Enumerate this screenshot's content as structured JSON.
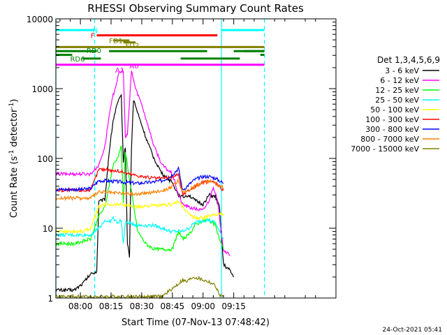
{
  "chart_data": {
    "type": "line",
    "title": "RHESSI Observing Summary Count Rates",
    "xlabel": "Start Time (07-Nov-13 07:48:42)",
    "ylabel_main": "Count Rate (s",
    "ylabel_sup1": "-1",
    "ylabel_mid": " detector",
    "ylabel_sup2": "-1",
    "ylabel_end": ")",
    "yscale": "log",
    "ylim": [
      1,
      10000
    ],
    "xlim_minutes": [
      -12,
      125
    ],
    "x_ticks": [
      {
        "m": 0,
        "label": "08:00"
      },
      {
        "m": 15,
        "label": "08:15"
      },
      {
        "m": 30,
        "label": "08:30"
      },
      {
        "m": 45,
        "label": "08:45"
      },
      {
        "m": 60,
        "label": "09:00"
      },
      {
        "m": 75,
        "label": "09:15"
      }
    ],
    "y_ticks": [
      {
        "v": 1,
        "label": "1"
      },
      {
        "v": 10,
        "label": "10"
      },
      {
        "v": 100,
        "label": "100"
      },
      {
        "v": 1000,
        "label": "1000"
      },
      {
        "v": 10000,
        "label": "10000"
      }
    ],
    "legend_title": "Det 1,3,4,5,6,9",
    "legend_position": "right",
    "series": [
      {
        "name": "3 - 6 keV",
        "color": "#000000",
        "points": [
          [
            -12,
            1.3
          ],
          [
            -3,
            1.3
          ],
          [
            1,
            1.6
          ],
          [
            5,
            2.2
          ],
          [
            8,
            2.4
          ],
          [
            9,
            24
          ],
          [
            12,
            26
          ],
          [
            14,
            120
          ],
          [
            16,
            350
          ],
          [
            18,
            600
          ],
          [
            20,
            800
          ],
          [
            21,
            90
          ],
          [
            22,
            150
          ],
          [
            23,
            6
          ],
          [
            24,
            4
          ],
          [
            25,
            150
          ],
          [
            26,
            700
          ],
          [
            28,
            450
          ],
          [
            30,
            300
          ],
          [
            32,
            200
          ],
          [
            34,
            140
          ],
          [
            36,
            100
          ],
          [
            40,
            60
          ],
          [
            45,
            45
          ],
          [
            48,
            30
          ],
          [
            50,
            28
          ],
          [
            53,
            30
          ],
          [
            56,
            25
          ],
          [
            60,
            22
          ],
          [
            63,
            30
          ],
          [
            66,
            28
          ],
          [
            68,
            20
          ],
          [
            70,
            3
          ],
          [
            73,
            2.5
          ],
          [
            75,
            2
          ]
        ]
      },
      {
        "name": "6 - 12 keV",
        "color": "#ff00ff",
        "points": [
          [
            -12,
            60
          ],
          [
            -3,
            60
          ],
          [
            1,
            60
          ],
          [
            5,
            60
          ],
          [
            9,
            80
          ],
          [
            12,
            150
          ],
          [
            14,
            400
          ],
          [
            16,
            800
          ],
          [
            19,
            1700
          ],
          [
            21,
            1800
          ],
          [
            22,
            200
          ],
          [
            23,
            220
          ],
          [
            25,
            1800
          ],
          [
            27,
            1000
          ],
          [
            30,
            600
          ],
          [
            33,
            300
          ],
          [
            36,
            150
          ],
          [
            40,
            80
          ],
          [
            45,
            60
          ],
          [
            48,
            30
          ],
          [
            50,
            22
          ],
          [
            53,
            20
          ],
          [
            56,
            19
          ],
          [
            60,
            18
          ],
          [
            63,
            25
          ],
          [
            65,
            40
          ],
          [
            67,
            25
          ],
          [
            70,
            5
          ],
          [
            73,
            4
          ]
        ]
      },
      {
        "name": "12 - 25 keV",
        "color": "#00ff00",
        "points": [
          [
            -12,
            6
          ],
          [
            -3,
            6
          ],
          [
            1,
            6.5
          ],
          [
            5,
            7
          ],
          [
            9,
            15
          ],
          [
            12,
            20
          ],
          [
            14,
            40
          ],
          [
            16,
            80
          ],
          [
            18,
            100
          ],
          [
            20,
            150
          ],
          [
            21,
            22
          ],
          [
            22,
            130
          ],
          [
            24,
            50
          ],
          [
            28,
            9
          ],
          [
            32,
            6
          ],
          [
            36,
            5
          ],
          [
            40,
            5
          ],
          [
            45,
            5
          ],
          [
            48,
            9
          ],
          [
            50,
            7
          ],
          [
            53,
            8
          ],
          [
            56,
            11
          ],
          [
            60,
            13
          ],
          [
            63,
            13
          ],
          [
            66,
            11
          ],
          [
            68,
            7
          ],
          [
            70,
            5
          ]
        ]
      },
      {
        "name": "25 - 50 keV",
        "color": "#00ffff",
        "points": [
          [
            -12,
            8
          ],
          [
            -3,
            8
          ],
          [
            1,
            8
          ],
          [
            5,
            8
          ],
          [
            9,
            10
          ],
          [
            12,
            13
          ],
          [
            14,
            12
          ],
          [
            16,
            14
          ],
          [
            18,
            12
          ],
          [
            20,
            13
          ],
          [
            21,
            6
          ],
          [
            22,
            12
          ],
          [
            24,
            12
          ],
          [
            28,
            11
          ],
          [
            32,
            11
          ],
          [
            36,
            11
          ],
          [
            40,
            10
          ],
          [
            44,
            9
          ],
          [
            48,
            9
          ],
          [
            50,
            9
          ],
          [
            53,
            10
          ],
          [
            56,
            12
          ],
          [
            60,
            13
          ],
          [
            63,
            13
          ],
          [
            66,
            12
          ],
          [
            68,
            9
          ],
          [
            70,
            7
          ]
        ]
      },
      {
        "name": "50 - 100 keV",
        "color": "#ffff00",
        "points": [
          [
            -12,
            9
          ],
          [
            -3,
            9
          ],
          [
            1,
            9
          ],
          [
            5,
            10
          ],
          [
            9,
            20
          ],
          [
            12,
            22
          ],
          [
            16,
            22
          ],
          [
            20,
            22
          ],
          [
            24,
            21
          ],
          [
            28,
            20
          ],
          [
            32,
            21
          ],
          [
            36,
            21
          ],
          [
            40,
            21
          ],
          [
            44,
            22
          ],
          [
            48,
            24
          ],
          [
            50,
            20
          ],
          [
            53,
            16
          ],
          [
            56,
            14
          ],
          [
            60,
            14
          ],
          [
            63,
            15
          ],
          [
            66,
            16
          ],
          [
            68,
            16
          ],
          [
            70,
            16
          ]
        ]
      },
      {
        "name": "100 - 300 keV",
        "color": "#ff0000",
        "points": [
          [
            -12,
            35
          ],
          [
            -3,
            35
          ],
          [
            1,
            35
          ],
          [
            5,
            35
          ],
          [
            9,
            70
          ],
          [
            12,
            70
          ],
          [
            16,
            67
          ],
          [
            20,
            65
          ],
          [
            24,
            60
          ],
          [
            28,
            57
          ],
          [
            32,
            54
          ],
          [
            36,
            52
          ],
          [
            40,
            52
          ],
          [
            44,
            53
          ],
          [
            48,
            60
          ],
          [
            50,
            30
          ],
          [
            53,
            35
          ],
          [
            56,
            40
          ],
          [
            60,
            45
          ],
          [
            63,
            48
          ],
          [
            66,
            45
          ],
          [
            68,
            40
          ],
          [
            70,
            35
          ]
        ]
      },
      {
        "name": "300 - 800 keV",
        "color": "#0000ff",
        "points": [
          [
            -12,
            36
          ],
          [
            -3,
            36
          ],
          [
            1,
            36
          ],
          [
            5,
            37
          ],
          [
            9,
            48
          ],
          [
            12,
            48
          ],
          [
            16,
            47
          ],
          [
            20,
            46
          ],
          [
            24,
            45
          ],
          [
            28,
            44
          ],
          [
            32,
            45
          ],
          [
            36,
            46
          ],
          [
            40,
            48
          ],
          [
            44,
            55
          ],
          [
            48,
            72
          ],
          [
            50,
            35
          ],
          [
            53,
            42
          ],
          [
            56,
            50
          ],
          [
            60,
            55
          ],
          [
            63,
            55
          ],
          [
            66,
            52
          ],
          [
            68,
            48
          ],
          [
            70,
            44
          ]
        ]
      },
      {
        "name": "800 - 7000 keV",
        "color": "#ff8000",
        "points": [
          [
            -12,
            27
          ],
          [
            -3,
            27
          ],
          [
            1,
            27
          ],
          [
            5,
            27
          ],
          [
            9,
            33
          ],
          [
            12,
            33
          ],
          [
            16,
            32
          ],
          [
            20,
            32
          ],
          [
            24,
            31
          ],
          [
            28,
            31
          ],
          [
            32,
            32
          ],
          [
            36,
            33
          ],
          [
            40,
            35
          ],
          [
            44,
            38
          ],
          [
            48,
            48
          ],
          [
            50,
            32
          ],
          [
            53,
            35
          ],
          [
            56,
            40
          ],
          [
            60,
            45
          ],
          [
            63,
            48
          ],
          [
            66,
            44
          ],
          [
            68,
            40
          ],
          [
            70,
            38
          ]
        ]
      },
      {
        "name": "7000 - 15000 keV",
        "color": "#808000",
        "points": [
          [
            -12,
            1.05
          ],
          [
            40,
            1.05
          ],
          [
            44,
            1.3
          ],
          [
            48,
            1.6
          ],
          [
            50,
            1.8
          ],
          [
            52,
            1.7
          ],
          [
            55,
            2.0
          ],
          [
            58,
            1.9
          ],
          [
            60,
            1.8
          ],
          [
            63,
            1.7
          ],
          [
            66,
            1.5
          ],
          [
            68,
            1.1
          ],
          [
            70,
            1.05
          ]
        ]
      }
    ],
    "flag_bars": [
      {
        "label": "N",
        "color": "#00ffff",
        "segments": [
          [
            -12,
            7
          ],
          [
            69,
            90
          ]
        ],
        "level": 6900
      },
      {
        "label": "F",
        "color": "#ff0000",
        "segments": [
          [
            8,
            67
          ]
        ],
        "level": 5800
      },
      {
        "label": "FD1",
        "color": "#808000",
        "segments": [
          [
            16,
            24
          ]
        ],
        "level": 4900
      },
      {
        "label": "FD2",
        "color": "#808000",
        "segments": [
          [
            21,
            27
          ]
        ],
        "level": 4600
      },
      {
        "label": "",
        "color": "#808000",
        "segments": [
          [
            -12,
            90
          ]
        ],
        "level": 3950
      },
      {
        "label": "RD0",
        "color": "#008000",
        "segments": [
          [
            -12,
            8
          ],
          [
            14,
            62
          ],
          [
            75,
            90
          ]
        ],
        "level": 3450
      },
      {
        "label": "",
        "color": "#008000",
        "segments": [
          [
            -12,
            -4
          ],
          [
            88,
            90
          ]
        ],
        "level": 3050
      },
      {
        "label": "RD6",
        "color": "#008000",
        "segments": [
          [
            1,
            10
          ],
          [
            49,
            78
          ]
        ],
        "level": 2700
      },
      {
        "label": "",
        "color": "#008000",
        "segments": [
          [
            80,
            90
          ]
        ],
        "level": 3450
      },
      {
        "label": "A1",
        "color": "#ff00ff",
        "segments": [
          [
            -12,
            90
          ]
        ],
        "level": 2200
      },
      {
        "label": "A0",
        "color": "#ff00ff",
        "segments": [],
        "level": 2200
      }
    ],
    "vertical_lines": [
      {
        "m": -12,
        "color": "#00ffff",
        "style": "solid"
      },
      {
        "m": 7,
        "color": "#00ffff",
        "style": "dashed"
      },
      {
        "m": 69,
        "color": "#00ffff",
        "style": "solid"
      },
      {
        "m": 90,
        "color": "#00ffff",
        "style": "dashed"
      }
    ]
  },
  "footer": {
    "timestamp": "24-Oct-2021 05:41"
  }
}
